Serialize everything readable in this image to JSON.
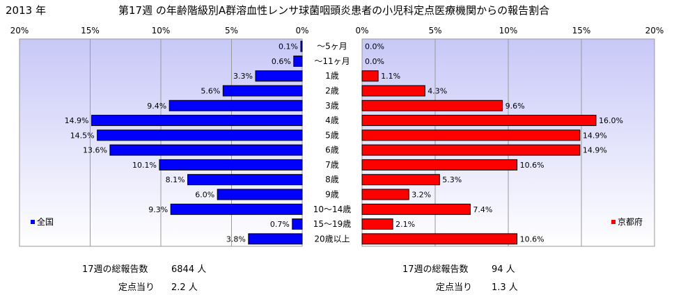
{
  "header": {
    "year": "2013 年",
    "title": "第17週 の年齢階級別A群溶血性レンサ球菌咽頭炎患者の小児科定点医療機関からの報告割合"
  },
  "chart_data": [
    {
      "type": "bar",
      "orientation": "horizontal",
      "direction": "right-to-left",
      "legend": "全国",
      "legend_position": "bottom-left",
      "color": "#0000ff",
      "xlim": [
        0,
        20
      ],
      "xticks": [
        "20%",
        "15%",
        "10%",
        "5%",
        "0%"
      ],
      "categories": [
        "～5ヶ月",
        "～11ヶ月",
        "1歳",
        "2歳",
        "3歳",
        "4歳",
        "5歳",
        "6歳",
        "7歳",
        "8歳",
        "9歳",
        "10～14歳",
        "15～19歳",
        "20歳以上"
      ],
      "values": [
        0.1,
        0.6,
        3.3,
        5.6,
        9.4,
        14.9,
        14.5,
        13.6,
        10.1,
        8.1,
        6.0,
        9.3,
        0.7,
        3.8
      ],
      "labels": [
        "0.1%",
        "0.6%",
        "3.3%",
        "5.6%",
        "9.4%",
        "14.9%",
        "14.5%",
        "13.6%",
        "10.1%",
        "8.1%",
        "6.0%",
        "9.3%",
        "0.7%",
        "3.8%"
      ]
    },
    {
      "type": "bar",
      "orientation": "horizontal",
      "direction": "left-to-right",
      "legend": "京都府",
      "legend_position": "bottom-right",
      "color": "#ff0000",
      "xlim": [
        0,
        20
      ],
      "xticks": [
        "0%",
        "5%",
        "10%",
        "15%",
        "20%"
      ],
      "categories": [
        "～5ヶ月",
        "～11ヶ月",
        "1歳",
        "2歳",
        "3歳",
        "4歳",
        "5歳",
        "6歳",
        "7歳",
        "8歳",
        "9歳",
        "10～14歳",
        "15～19歳",
        "20歳以上"
      ],
      "values": [
        0.0,
        0.0,
        1.1,
        4.3,
        9.6,
        16.0,
        14.9,
        14.9,
        10.6,
        5.3,
        3.2,
        7.4,
        2.1,
        10.6
      ],
      "labels": [
        "0.0%",
        "0.0%",
        "1.1%",
        "4.3%",
        "9.6%",
        "16.0%",
        "14.9%",
        "14.9%",
        "10.6%",
        "5.3%",
        "3.2%",
        "7.4%",
        "2.1%",
        "10.6%"
      ]
    }
  ],
  "stats": {
    "left": {
      "total_label": "17週の総報告数",
      "total_value": "6844 人",
      "per_label": "定点当り",
      "per_value": "2.2 人"
    },
    "right": {
      "total_label": "17週の総報告数",
      "total_value": "94 人",
      "per_label": "定点当り",
      "per_value": "1.3 人"
    }
  }
}
